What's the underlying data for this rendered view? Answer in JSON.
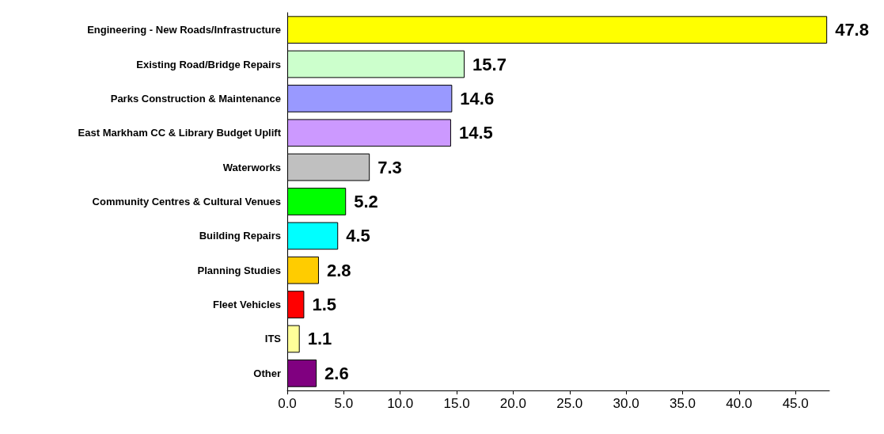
{
  "chart_data": {
    "type": "bar",
    "orientation": "horizontal",
    "categories": [
      "Engineering - New Roads/Infrastructure",
      "Existing Road/Bridge Repairs",
      "Parks Construction & Maintenance",
      "East Markham CC & Library Budget Uplift",
      "Waterworks",
      "Community Centres & Cultural Venues",
      "Building Repairs",
      "Planning Studies",
      "Fleet Vehicles",
      "ITS",
      "Other"
    ],
    "values": [
      47.8,
      15.7,
      14.6,
      14.5,
      7.3,
      5.2,
      4.5,
      2.8,
      1.5,
      1.1,
      2.6
    ],
    "colors": [
      "#ffff00",
      "#ccffcc",
      "#9999ff",
      "#cc99ff",
      "#c0c0c0",
      "#00ff00",
      "#00ffff",
      "#ffcc00",
      "#ff0000",
      "#ffff99",
      "#800080"
    ],
    "xlim": [
      0,
      48
    ],
    "xticks": [
      {
        "value": 0,
        "label": "0.0"
      },
      {
        "value": 5,
        "label": "5.0"
      },
      {
        "value": 10,
        "label": "10.0"
      },
      {
        "value": 15,
        "label": "15.0"
      },
      {
        "value": 20,
        "label": "20.0"
      },
      {
        "value": 25,
        "label": "25.0"
      },
      {
        "value": 30,
        "label": "30.0"
      },
      {
        "value": 35,
        "label": "35.0"
      },
      {
        "value": 40,
        "label": "40.0"
      },
      {
        "value": 45,
        "label": "45.0"
      }
    ],
    "data_labels": true
  }
}
